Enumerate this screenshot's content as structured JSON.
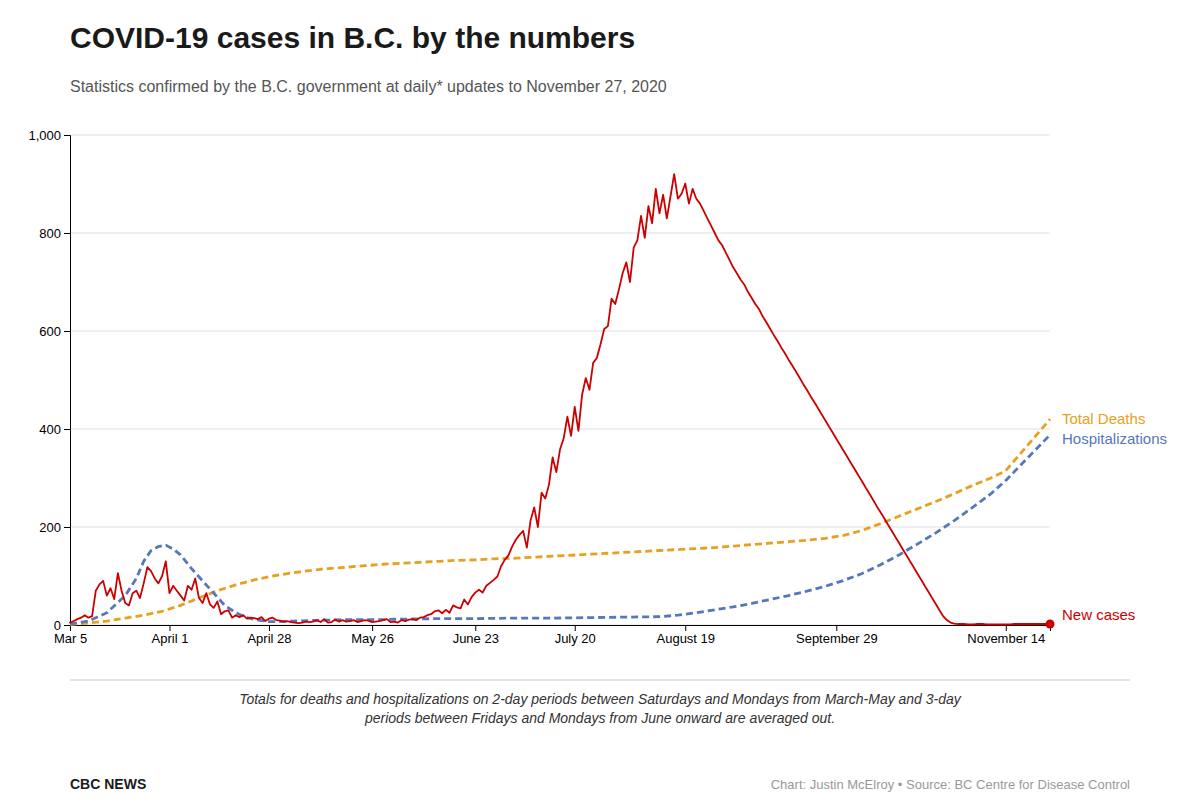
{
  "chart_data": {
    "type": "line",
    "title": "COVID-19 cases in B.C. by the numbers",
    "subtitle": "Statistics confirmed by the B.C. government at daily* updates to November 27, 2020",
    "annotations": [
      "Totals for deaths and hospitalizations on 2-day periods between Saturdays and Mondays from March-May and 3-day\nperiods between Fridays and Mondays from June onward are averaged out.",
      "CBC NEWS",
      "Chart: Justin McElroy • Source: BC Centre for Disease Control"
    ],
    "xlim": [
      0,
      266
    ],
    "xticks": [
      {
        "value": 0,
        "label": "Mar 5"
      },
      {
        "value": 27,
        "label": "April 1"
      },
      {
        "value": 54,
        "label": "April 28"
      },
      {
        "value": 82,
        "label": "May 26"
      },
      {
        "value": 110,
        "label": "June 23"
      },
      {
        "value": 137,
        "label": "July 20"
      },
      {
        "value": 167,
        "label": "August 19"
      },
      {
        "value": 208,
        "label": "September 29"
      },
      {
        "value": 254,
        "label": "November 14"
      }
    ],
    "ylim": [
      0,
      1000
    ],
    "yticks": [
      0,
      200,
      400,
      600,
      800,
      {
        "value": 1000,
        "label": "1,000"
      }
    ],
    "grid": true,
    "series": [
      {
        "name": "New cases",
        "color": "#cc0000",
        "line_style": "solid",
        "x": [
          0,
          1,
          2,
          3,
          4,
          5,
          6,
          7,
          8,
          9,
          10,
          11,
          12,
          13,
          14,
          15,
          16,
          17,
          18,
          19,
          20,
          21,
          22,
          23,
          24,
          25,
          26,
          27,
          28,
          29,
          30,
          31,
          32,
          33,
          34,
          35,
          36,
          37,
          38,
          39,
          40,
          41,
          42,
          43,
          44,
          45,
          46,
          47,
          48,
          49,
          50,
          51,
          52,
          53,
          54,
          55,
          56,
          57,
          58,
          59,
          60,
          61,
          62,
          63,
          64,
          65,
          66,
          67,
          68,
          69,
          70,
          71,
          72,
          73,
          74,
          75,
          76,
          77,
          78,
          79,
          80,
          81,
          82,
          83,
          84,
          85,
          86,
          87,
          88,
          89,
          90,
          91,
          92,
          93,
          94,
          95,
          96,
          97,
          98,
          99,
          100,
          101,
          102,
          103,
          104,
          105,
          106,
          107,
          108,
          109,
          110,
          111,
          112,
          113,
          114,
          115,
          116,
          117,
          118,
          119,
          120,
          121,
          122,
          123,
          124,
          125,
          126,
          127,
          128,
          129,
          130,
          131,
          132,
          133,
          134,
          135,
          136,
          137,
          138,
          139,
          140,
          141,
          142,
          143,
          144,
          145,
          146,
          147,
          148,
          149,
          150,
          151,
          152,
          153,
          154,
          155,
          156,
          157,
          158,
          159,
          160,
          161,
          162,
          163,
          164,
          165,
          166,
          167,
          168,
          169,
          170,
          171,
          172,
          173,
          174,
          175,
          176,
          177,
          178,
          179,
          180,
          181,
          182,
          183,
          184,
          185,
          186,
          187,
          188,
          189,
          190,
          191,
          192,
          193,
          194,
          195,
          196,
          197,
          198,
          199,
          200,
          201,
          202,
          203,
          204,
          205,
          206,
          207,
          208,
          209,
          210,
          211,
          212,
          213,
          214,
          215,
          216,
          217,
          218,
          219,
          220,
          221,
          222,
          223,
          224,
          225,
          226,
          227,
          228,
          229,
          230,
          231,
          232,
          233,
          234,
          235,
          236,
          237,
          238,
          239,
          240,
          241,
          242,
          243,
          244,
          245,
          246,
          247,
          248,
          249,
          250,
          251,
          252,
          253,
          254,
          255,
          256,
          257,
          258,
          259,
          260,
          261,
          262,
          263,
          264,
          265,
          266
        ],
        "values": [
          5,
          8,
          12,
          15,
          20,
          15,
          18,
          70,
          83,
          90,
          60,
          75,
          53,
          106,
          70,
          45,
          40,
          65,
          70,
          55,
          85,
          118,
          110,
          95,
          85,
          100,
          130,
          65,
          80,
          70,
          60,
          50,
          80,
          72,
          95,
          55,
          45,
          65,
          42,
          35,
          48,
          22,
          28,
          30,
          15,
          20,
          16,
          20,
          13,
          15,
          14,
          12,
          16,
          8,
          13,
          15,
          10,
          9,
          7,
          8,
          6,
          5,
          4,
          5,
          7,
          6,
          7,
          10,
          6,
          12,
          5,
          6,
          11,
          7,
          10,
          7,
          8,
          10,
          6,
          8,
          10,
          9,
          6,
          7,
          8,
          10,
          12,
          6,
          7,
          5,
          10,
          8,
          11,
          12,
          10,
          15,
          16,
          20,
          22,
          28,
          30,
          24,
          31,
          25,
          40,
          36,
          34,
          52,
          42,
          57,
          66,
          72,
          66,
          80,
          86,
          92,
          99,
          120,
          133,
          142,
          160,
          174,
          184,
          192,
          158,
          213,
          240,
          200,
          270,
          258,
          286,
          342,
          312,
          358,
          381,
          425,
          386,
          445,
          396,
          470,
          504,
          480,
          535,
          545,
          573,
          604,
          610,
          666,
          655,
          685,
          718,
          740,
          700,
          770,
          785,
          835,
          790,
          855,
          820,
          890,
          840,
          878,
          830,
          875,
          920,
          870,
          880,
          901,
          860,
          890,
          870,
          860,
          845,
          830,
          815,
          800,
          785,
          775,
          760,
          745,
          730,
          718,
          705,
          695,
          680,
          668,
          655,
          645,
          630,
          618,
          605,
          592,
          580,
          567,
          555,
          542,
          530,
          518,
          505,
          492,
          480,
          467,
          455,
          443,
          430,
          418,
          405,
          393,
          380,
          368,
          355,
          343,
          330,
          318,
          305,
          293,
          280,
          268,
          255,
          242,
          230,
          218,
          205,
          193,
          180,
          168,
          155,
          143,
          130,
          118,
          105,
          93,
          80,
          68,
          55,
          43,
          30,
          18,
          10,
          5,
          3,
          2,
          2,
          2,
          1,
          1,
          2,
          2,
          2,
          1,
          1,
          1,
          1,
          1,
          1,
          1,
          2,
          2,
          2,
          2,
          2,
          2,
          2,
          2,
          2,
          2,
          2
        ]
      },
      {
        "name": "Total Deaths",
        "color": "#e8a020",
        "line_style": "dashed",
        "x": [
          0,
          5,
          10,
          15,
          20,
          25,
          30,
          35,
          40,
          45,
          50,
          55,
          60,
          65,
          70,
          75,
          80,
          85,
          90,
          95,
          100,
          105,
          110,
          115,
          120,
          125,
          130,
          135,
          140,
          145,
          150,
          155,
          160,
          165,
          170,
          175,
          180,
          185,
          190,
          195,
          200,
          205,
          210,
          215,
          220,
          225,
          230,
          235,
          240,
          245,
          250,
          254,
          266
        ],
        "values": [
          1,
          4,
          8,
          14,
          20,
          28,
          40,
          55,
          70,
          82,
          92,
          100,
          106,
          111,
          115,
          118,
          121,
          124,
          126,
          128,
          130,
          132,
          133,
          135,
          136,
          138,
          140,
          142,
          144,
          146,
          148,
          150,
          152,
          154,
          156,
          158,
          161,
          164,
          167,
          170,
          173,
          177,
          183,
          193,
          207,
          222,
          237,
          252,
          268,
          285,
          300,
          315,
          420
        ]
      },
      {
        "name": "Hospitalizations",
        "color": "#5577bb",
        "line_style": "dashed",
        "x": [
          0,
          5,
          10,
          15,
          18,
          20,
          22,
          24,
          26,
          28,
          30,
          33,
          36,
          39,
          42,
          45,
          48,
          51,
          54,
          57,
          60,
          65,
          70,
          75,
          80,
          85,
          90,
          100,
          110,
          120,
          130,
          140,
          150,
          160,
          165,
          170,
          175,
          180,
          185,
          190,
          195,
          200,
          205,
          210,
          215,
          220,
          225,
          230,
          235,
          240,
          245,
          250,
          254,
          266
        ],
        "values": [
          2,
          8,
          25,
          60,
          95,
          130,
          152,
          160,
          163,
          155,
          143,
          115,
          90,
          65,
          40,
          25,
          15,
          10,
          7,
          7,
          8,
          9,
          10,
          11,
          11,
          11,
          12,
          13,
          13,
          14,
          14,
          15,
          16,
          17,
          20,
          25,
          31,
          37,
          44,
          52,
          60,
          69,
          79,
          91,
          105,
          123,
          143,
          165,
          188,
          213,
          240,
          268,
          295,
          388
        ]
      }
    ]
  }
}
